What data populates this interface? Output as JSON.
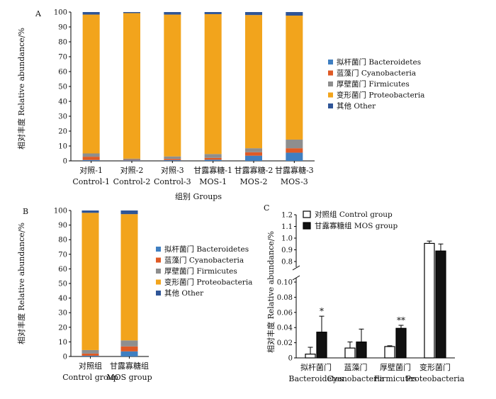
{
  "colors": {
    "bacteroidetes": "#3f7fc1",
    "cyanobacteria": "#df5a25",
    "firmicutes": "#8e8e8e",
    "proteobacteria": "#f2a41c",
    "other": "#2f5597",
    "control_bar": "#ffffff",
    "mos_bar": "#111111"
  },
  "legend_taxa": [
    "拟杆菌门 Bacteroidetes",
    "蓝藻门 Cyanobacteria",
    "厚壁菌门 Firmicutes",
    "变形菌门 Proteobacteria",
    "其他 Other"
  ],
  "chart_data": [
    {
      "panel": "A",
      "type": "bar",
      "stacked": true,
      "categories_cn": [
        "对照-1",
        "对照-2",
        "对照-3",
        "甘露寡糖-1",
        "甘露寡糖-2",
        "甘露寡糖-3"
      ],
      "categories_en": [
        "Control-1",
        "Control-2",
        "Control-3",
        "MOS-1",
        "MOS-2",
        "MOS-3"
      ],
      "series": [
        {
          "name": "拟杆菌门 Bacteroidetes",
          "values": [
            0.6,
            0.4,
            0.5,
            0.8,
            3.5,
            5.5
          ]
        },
        {
          "name": "蓝藻门 Cyanobacteria",
          "values": [
            2.2,
            0.3,
            0.8,
            1.2,
            2.3,
            3.0
          ]
        },
        {
          "name": "厚壁菌门 Firmicutes",
          "values": [
            2.2,
            0.8,
            1.7,
            2.6,
            2.7,
            5.8
          ]
        },
        {
          "name": "变形菌门 Proteobacteria",
          "values": [
            93.3,
            97.8,
            95.3,
            94.0,
            89.5,
            83.3
          ]
        },
        {
          "name": "其他 Other",
          "values": [
            1.7,
            0.7,
            1.7,
            1.4,
            2.0,
            2.4
          ]
        }
      ],
      "xlabel": "组别 Groups",
      "ylabel": "相对丰度 Relative abundance/%",
      "ylim": [
        0,
        100
      ],
      "yticks": [
        0,
        10,
        20,
        30,
        40,
        50,
        60,
        70,
        80,
        90,
        100
      ],
      "legend": "right"
    },
    {
      "panel": "B",
      "type": "bar",
      "stacked": true,
      "categories_cn": [
        "对照组",
        "甘露寡糖组"
      ],
      "categories_en": [
        "Control group",
        "MOS group"
      ],
      "series": [
        {
          "name": "拟杆菌门 Bacteroidetes",
          "values": [
            0.5,
            3.5
          ]
        },
        {
          "name": "蓝藻门 Cyanobacteria",
          "values": [
            1.5,
            3.4
          ]
        },
        {
          "name": "厚壁菌门 Firmicutes",
          "values": [
            2.4,
            4.1
          ]
        },
        {
          "name": "变形菌门 Proteobacteria",
          "values": [
            94.0,
            86.5
          ]
        },
        {
          "name": "其他 Other",
          "values": [
            1.6,
            2.5
          ]
        }
      ],
      "ylabel": "相对丰度 Relative abundance/%",
      "ylim": [
        0,
        100
      ],
      "yticks": [
        0,
        10,
        20,
        30,
        40,
        50,
        60,
        70,
        80,
        90,
        100
      ],
      "legend": "right"
    },
    {
      "panel": "C",
      "type": "bar",
      "grouped": true,
      "broken_axis": true,
      "categories_cn": [
        "拟杆菌门",
        "蓝藻门",
        "厚壁菌门",
        "变形菌门"
      ],
      "categories_en": [
        "Bacteroidetes",
        "Cyanobacteria",
        "Firmicutes",
        "Proteobacteria"
      ],
      "series": [
        {
          "name": "对照组 Control group",
          "values": [
            0.005,
            0.013,
            0.015,
            0.955
          ],
          "errors": [
            0.009,
            0.008,
            0.001,
            0.02
          ]
        },
        {
          "name": "甘露寡糖组 MOS group",
          "values": [
            0.034,
            0.021,
            0.039,
            0.89
          ],
          "errors": [
            0.021,
            0.017,
            0.004,
            0.06
          ]
        }
      ],
      "significance": [
        "*",
        "",
        "**",
        ""
      ],
      "ylabel": "相对丰度 Relative abundance/%",
      "ylim_lower": [
        0,
        0.1
      ],
      "yticks_lower": [
        "0",
        "0.02",
        "0.04",
        "0.06",
        "0.08",
        "0.10"
      ],
      "ylim_upper": [
        0.8,
        1.2
      ],
      "yticks_upper": [
        "0.8",
        "0.9",
        "1.0",
        "1.1",
        "1.2"
      ],
      "legend": "top-right"
    }
  ]
}
